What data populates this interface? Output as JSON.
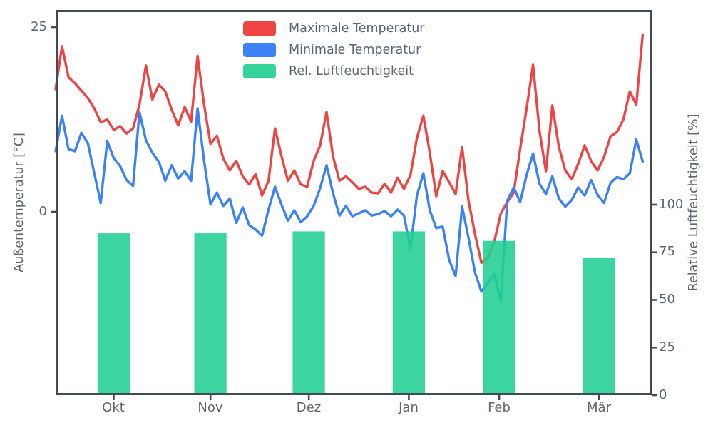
{
  "chart_data": {
    "type": "composite",
    "description": "line+bar dual-axis climate chart",
    "x_axis": {
      "tick_labels": [
        "Okt",
        "Nov",
        "Dez",
        "Jan",
        "Feb",
        "Mär"
      ],
      "tick_days": [
        18,
        48,
        78.5,
        109.5,
        137.5,
        168.5
      ],
      "range_days": [
        0,
        185
      ],
      "grid": false
    },
    "y_axis_left": {
      "label": "Außentemperatur [°C]",
      "tick_labels": [
        "25",
        "0"
      ],
      "tick_values": [
        25,
        0
      ],
      "range": [
        -25,
        27.3
      ]
    },
    "y_axis_right": {
      "label": "Relative Luftfeuchtigkeit [%]",
      "tick_labels": [
        "0",
        "25",
        "50",
        "75",
        "100"
      ],
      "tick_values": [
        0,
        25,
        50,
        75,
        100
      ],
      "range": [
        0,
        202
      ]
    },
    "series": [
      {
        "name": "Maximale Temperatur",
        "type": "line",
        "color": "#ee4444",
        "axis": "left",
        "day_start": 0,
        "day_step": 2,
        "values": [
          16.6,
          22.4,
          18.2,
          17.4,
          16.4,
          15.4,
          14.0,
          12.1,
          12.5,
          11.1,
          11.6,
          10.6,
          11.3,
          14.5,
          19.8,
          15.2,
          17.2,
          16.3,
          13.8,
          11.7,
          14.2,
          12.2,
          21.1,
          14.6,
          9.2,
          10.3,
          7.2,
          5.6,
          6.9,
          4.8,
          3.7,
          5.1,
          2.2,
          4.2,
          11.3,
          7.6,
          4.2,
          5.6,
          3.7,
          3.4,
          6.9,
          9.0,
          13.5,
          7.5,
          4.2,
          4.8,
          4.0,
          3.1,
          3.4,
          2.6,
          2.5,
          3.8,
          2.6,
          4.6,
          3.1,
          5.0,
          10.0,
          13.0,
          8.0,
          2.1,
          5.5,
          4.0,
          2.4,
          8.8,
          1.5,
          -3.0,
          -6.9,
          -6.2,
          -4.0,
          -0.2,
          1.3,
          2.6,
          8.5,
          14.0,
          19.9,
          11.0,
          5.5,
          14.4,
          8.8,
          5.6,
          4.4,
          6.5,
          9.0,
          6.9,
          5.6,
          7.4,
          10.2,
          10.8,
          12.5,
          16.3,
          14.5,
          24.0
        ]
      },
      {
        "name": "Minimale Temperatur",
        "type": "line",
        "color": "#3b82f6",
        "axis": "left",
        "day_start": 0,
        "day_step": 2,
        "values": [
          8.2,
          13.0,
          8.5,
          8.2,
          10.7,
          9.3,
          5.2,
          1.2,
          9.6,
          7.3,
          6.2,
          4.3,
          3.5,
          13.5,
          9.7,
          8.0,
          6.8,
          4.2,
          6.3,
          4.5,
          5.5,
          4.2,
          14.0,
          7.0,
          1.0,
          2.6,
          0.8,
          1.8,
          -1.5,
          0.6,
          -1.8,
          -2.4,
          -3.2,
          0.3,
          3.4,
          1.0,
          -1.2,
          0.2,
          -1.4,
          -0.6,
          0.8,
          3.2,
          6.3,
          2.5,
          -0.5,
          0.8,
          -0.6,
          -0.2,
          0.2,
          -0.5,
          -0.3,
          0.1,
          -0.6,
          0.3,
          -0.5,
          -5.0,
          2.2,
          5.2,
          0.2,
          -2.2,
          -2.0,
          -6.5,
          -8.7,
          0.7,
          -3.5,
          -8.2,
          -10.8,
          -9.6,
          -8.4,
          -12.1,
          1.5,
          3.3,
          1.3,
          5.0,
          7.9,
          3.8,
          2.4,
          4.8,
          1.8,
          0.7,
          1.6,
          3.3,
          2.2,
          4.3,
          2.3,
          1.2,
          3.9,
          4.7,
          4.4,
          5.2,
          9.8,
          6.8
        ]
      },
      {
        "name": "Rel. Luftfeuchtigkeit",
        "type": "bar",
        "color": "#34d399",
        "axis": "right",
        "categories": [
          "Okt",
          "Nov",
          "Dez",
          "Jan",
          "Feb",
          "Mär"
        ],
        "bar_center_days": [
          18,
          48,
          78.5,
          109.5,
          137.5,
          168.5
        ],
        "bar_width_days": 10,
        "values": [
          85,
          85,
          86,
          86,
          81,
          72
        ]
      }
    ],
    "legend": {
      "position": "upper center",
      "entries": [
        "Maximale Temperatur",
        "Minimale Temperatur",
        "Rel. Luftfeuchtigkeit"
      ]
    }
  },
  "colors": {
    "spine": "#414a57",
    "tick_text": "#5d6676",
    "background": "#ffffff",
    "max_temp": "#ee4444",
    "min_temp": "#3b82f6",
    "humidity": "#34d399"
  }
}
